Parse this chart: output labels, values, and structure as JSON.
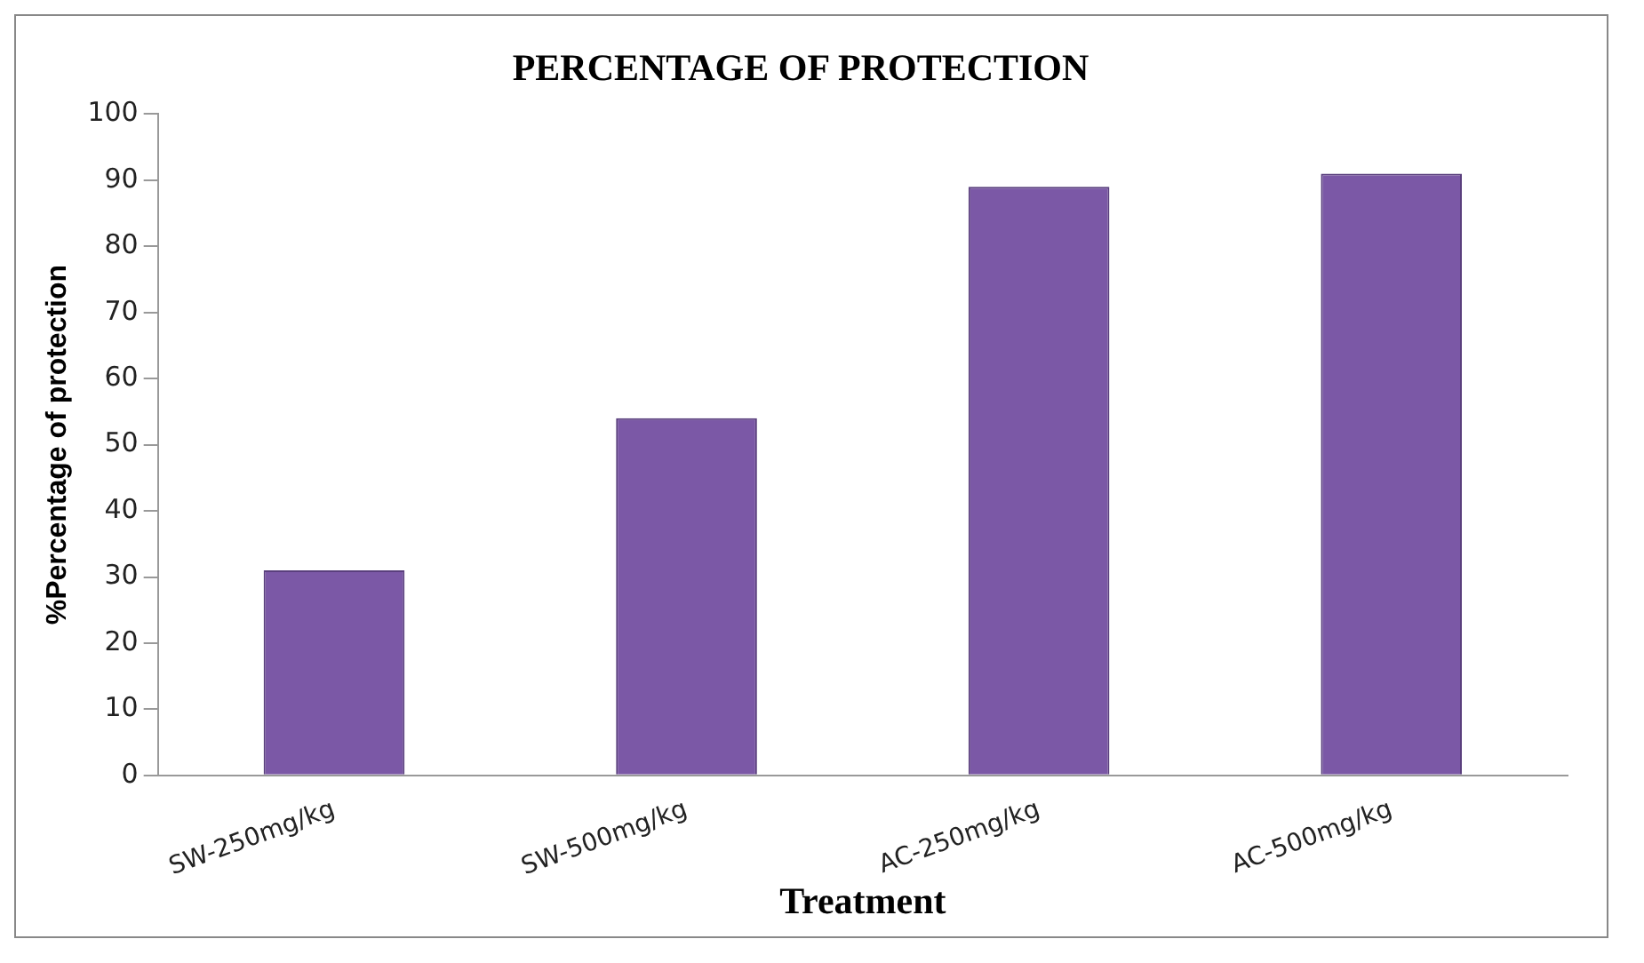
{
  "chart_data": {
    "type": "bar",
    "title": "PERCENTAGE OF PROTECTION",
    "xlabel": "Treatment",
    "ylabel": "%Percentage of protection",
    "categories": [
      "SW-250mg/kg",
      "SW-500mg/kg",
      "AC-250mg/kg",
      "AC-500mg/kg"
    ],
    "values": [
      31,
      54,
      89,
      91
    ],
    "color": "#7b58a6",
    "ylim": [
      0,
      100
    ],
    "yticks": [
      0,
      10,
      20,
      30,
      40,
      50,
      60,
      70,
      80,
      90,
      100
    ],
    "grid": false,
    "legend": false
  }
}
